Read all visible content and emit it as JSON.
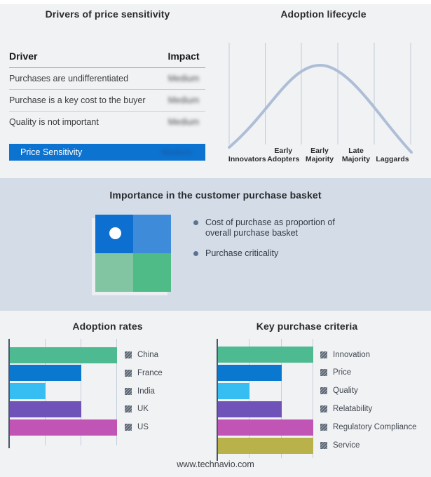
{
  "drivers_table": {
    "title": "Drivers of price sensitivity",
    "columns": {
      "driver": "Driver",
      "impact": "Impact"
    },
    "rows": [
      {
        "driver": "Purchases are undifferentiated",
        "impact": "Medium"
      },
      {
        "driver": "Purchase is a key cost to the buyer",
        "impact": "Medium"
      },
      {
        "driver": "Quality is not important",
        "impact": "Medium"
      }
    ],
    "highlight": {
      "driver": "Price Sensitivity",
      "impact": "Medium",
      "background": "#0c73d0"
    },
    "impact_values_blurred": true
  },
  "chart_data": [
    {
      "id": "adoption-lifecycle",
      "type": "line",
      "title": "Adoption lifecycle",
      "categories": [
        "Innovators",
        "Early Adopters",
        "Early Majority",
        "Late Majority",
        "Laggards"
      ],
      "description": "Bell-shaped adoption curve rising from Innovators, peaking in Early Majority, falling through Laggards",
      "curve_color": "#adbed6",
      "gridline_color": "#c1cbda",
      "grid": "6 vertical separators, no numeric axes"
    },
    {
      "id": "adoption-rates",
      "type": "bar",
      "title": "Adoption rates",
      "orientation": "horizontal",
      "categories": [
        "China",
        "France",
        "India",
        "UK",
        "US"
      ],
      "values": [
        3,
        2,
        1,
        2,
        3
      ],
      "xlim": [
        0,
        3
      ],
      "colors": [
        "#4eba92",
        "#0b78d0",
        "#36bdf1",
        "#7053b9",
        "#c055b5"
      ],
      "legend_position": "right",
      "grid": "vertical gridlines at 1-unit steps, no tick labels"
    },
    {
      "id": "key-purchase-criteria",
      "type": "bar",
      "title": "Key purchase criteria",
      "orientation": "horizontal",
      "categories": [
        "Innovation",
        "Price",
        "Quality",
        "Relatability",
        "Regulatory Compliance",
        "Service"
      ],
      "values": [
        3,
        2,
        1,
        2,
        3,
        3
      ],
      "xlim": [
        0,
        3
      ],
      "colors": [
        "#4eba92",
        "#0b78d0",
        "#36bdf1",
        "#7053b9",
        "#c055b5",
        "#b9b14a"
      ],
      "legend_position": "right",
      "grid": "vertical gridlines at 1-unit steps, no tick labels"
    }
  ],
  "basket": {
    "title": "Importance in the customer purchase basket",
    "bullets": [
      "Cost of purchase as proportion of overall purchase basket",
      "Purchase criticality"
    ],
    "bullet_dot_color": "#5b7391",
    "quadrant": {
      "top_left": "#0d70d1",
      "top_right": "#3e8bd9",
      "bottom_left": "#82c5a3",
      "bottom_right": "#4fbb86",
      "marker": "white dot in top-left quadrant"
    }
  },
  "footer": {
    "website": "www.technavio.com"
  }
}
